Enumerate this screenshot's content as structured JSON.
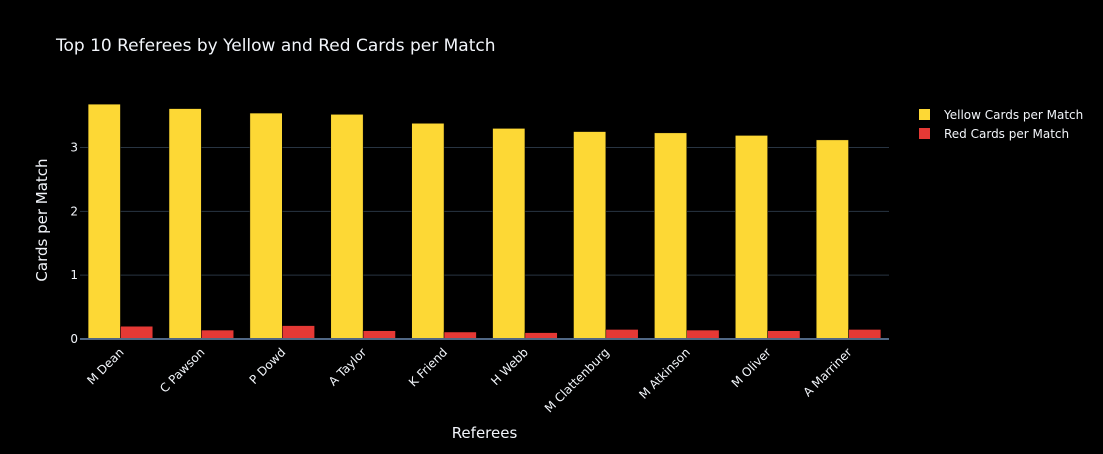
{
  "chart_data": {
    "type": "bar",
    "title": "Top 10 Referees by Yellow and Red Cards per Match",
    "xlabel": "Referees",
    "ylabel": "Cards per Match",
    "categories": [
      "M Dean",
      "C Pawson",
      "P Dowd",
      "A Taylor",
      "K Friend",
      "H Webb",
      "M Clattenburg",
      "M Atkinson",
      "M Oliver",
      "A Marriner"
    ],
    "series": [
      {
        "name": "Yellow Cards per Match",
        "color": "#fdd835",
        "values": [
          3.68,
          3.61,
          3.54,
          3.52,
          3.38,
          3.3,
          3.25,
          3.23,
          3.19,
          3.12
        ]
      },
      {
        "name": "Red Cards per Match",
        "color": "#e53935",
        "values": [
          0.2,
          0.14,
          0.21,
          0.13,
          0.11,
          0.1,
          0.15,
          0.14,
          0.13,
          0.15
        ]
      }
    ],
    "ylim": [
      0,
      3.87
    ],
    "yticks": [
      0,
      1,
      2,
      3
    ],
    "ytick_labels": [
      "0",
      "1",
      "2",
      "3"
    ],
    "grid": true,
    "legend_position": "top-right",
    "background": "#000000",
    "grid_color": "#283442",
    "text_color": "#f2f5fa"
  }
}
